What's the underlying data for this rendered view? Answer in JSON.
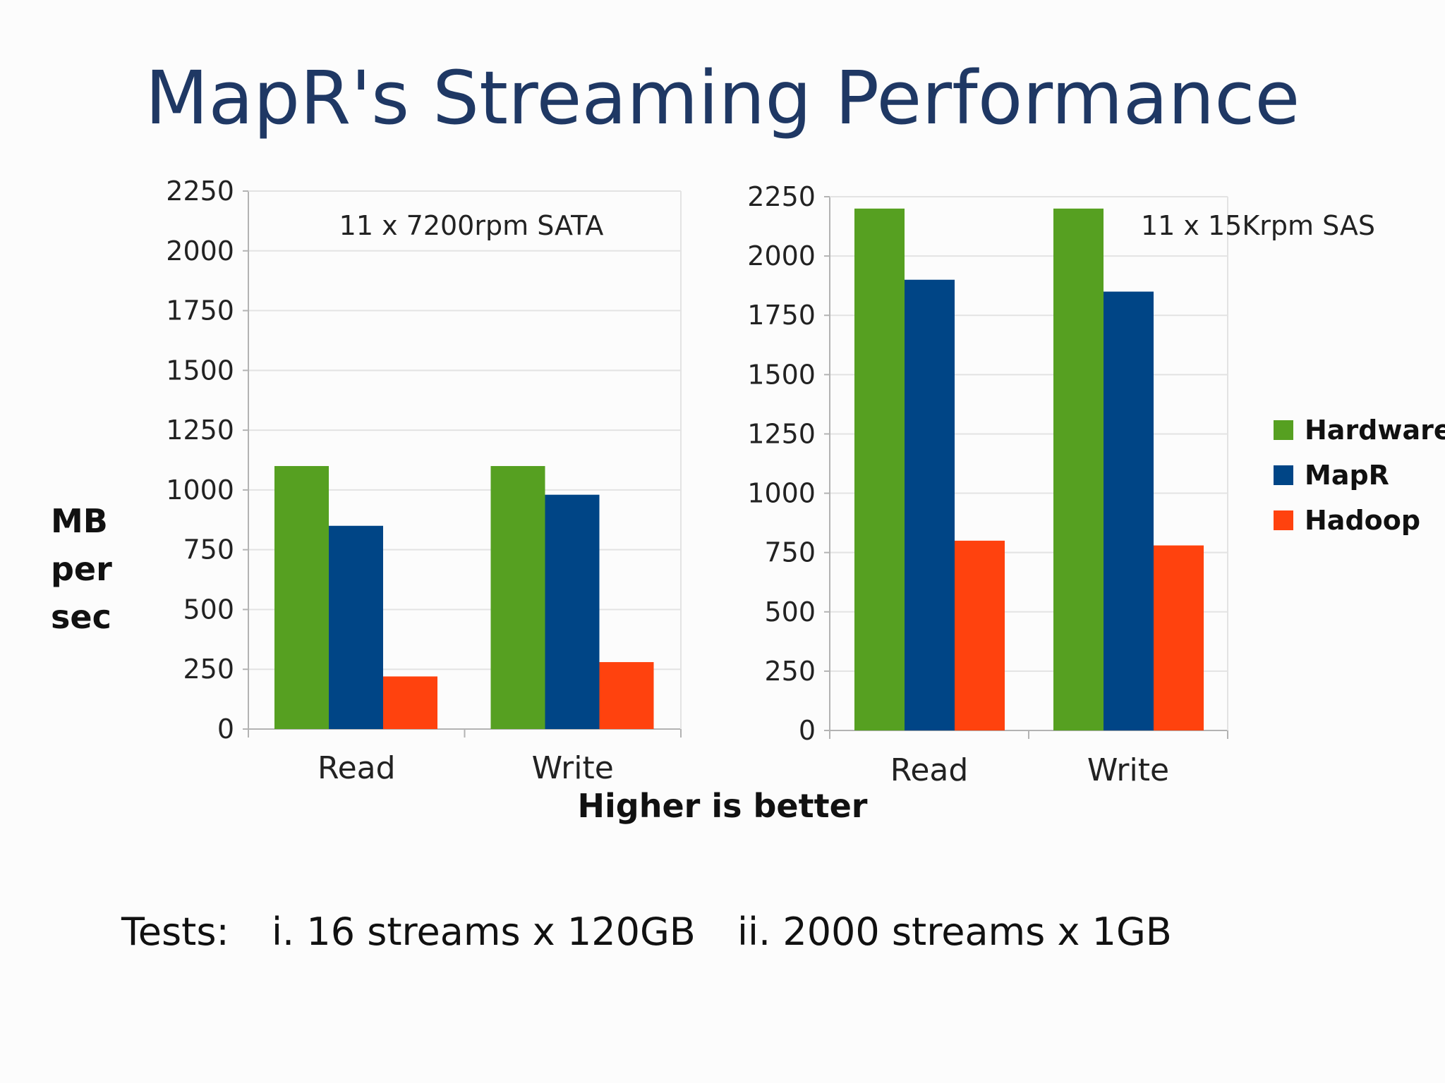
{
  "title": "MapR's Streaming Performance",
  "ylabel_lines": [
    "MB",
    "per",
    "sec"
  ],
  "note": "Higher is better",
  "tests": {
    "prefix": "Tests:",
    "item1": "i.  16 streams x 120GB",
    "item2": "ii.  2000 streams x 1GB"
  },
  "legend": [
    {
      "name": "Hardware",
      "color": "#56a021"
    },
    {
      "name": "MapR",
      "color": "#004586"
    },
    {
      "name": "Hadoop",
      "color": "#ff420e"
    }
  ],
  "chart_data": [
    {
      "type": "bar",
      "title": "11 x 7200rpm SATA",
      "categories": [
        "Read",
        "Write"
      ],
      "series": [
        {
          "name": "Hardware",
          "values": [
            1100,
            1100
          ]
        },
        {
          "name": "MapR",
          "values": [
            850,
            980
          ]
        },
        {
          "name": "Hadoop",
          "values": [
            220,
            280
          ]
        }
      ],
      "ylim": [
        0,
        2250
      ],
      "yticks": [
        0,
        250,
        500,
        750,
        1000,
        1250,
        1500,
        1750,
        2000,
        2250
      ],
      "ylabel": "MB per sec",
      "grid": true
    },
    {
      "type": "bar",
      "title": "11 x 15Krpm SAS",
      "categories": [
        "Read",
        "Write"
      ],
      "series": [
        {
          "name": "Hardware",
          "values": [
            2200,
            2200
          ]
        },
        {
          "name": "MapR",
          "values": [
            1900,
            1850
          ]
        },
        {
          "name": "Hadoop",
          "values": [
            800,
            780
          ]
        }
      ],
      "ylim": [
        0,
        2250
      ],
      "yticks": [
        0,
        250,
        500,
        750,
        1000,
        1250,
        1500,
        1750,
        2000,
        2250
      ],
      "grid": true,
      "legend_position": "right"
    }
  ]
}
